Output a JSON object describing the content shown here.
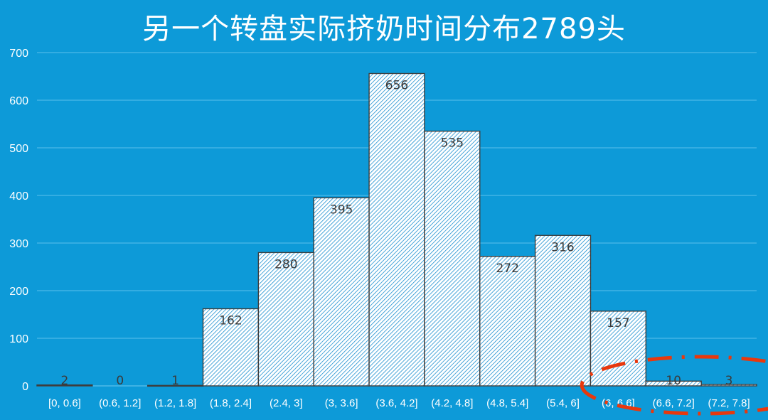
{
  "chart_data": {
    "type": "bar",
    "title": "另一个转盘实际挤奶时间分布2789头",
    "categories": [
      "[0, 0.6]",
      "(0.6, 1.2]",
      "(1.2, 1.8]",
      "(1.8, 2.4]",
      "(2.4, 3]",
      "(3, 3.6]",
      "(3.6, 4.2]",
      "(4.2, 4.8]",
      "(4.8, 5.4]",
      "(5.4, 6]",
      "(6, 6.6]",
      "(6.6, 7.2]",
      "(7.2, 7.8]"
    ],
    "values": [
      2,
      0,
      1,
      162,
      280,
      395,
      656,
      535,
      272,
      316,
      157,
      10,
      3
    ],
    "yticks": [
      0,
      100,
      200,
      300,
      400,
      500,
      600,
      700
    ],
    "ylim": [
      0,
      700
    ],
    "grid": true,
    "bar_fill": "hatched white/blue",
    "bar_stroke": "#3d3d3d",
    "annotation": "red dashed ellipse around last two bars"
  },
  "colors": {
    "background": "#0d9ad8",
    "hatch_line": "#1a8fd0",
    "gridline": "#5cc0ec",
    "annotation": "#e8380d"
  }
}
